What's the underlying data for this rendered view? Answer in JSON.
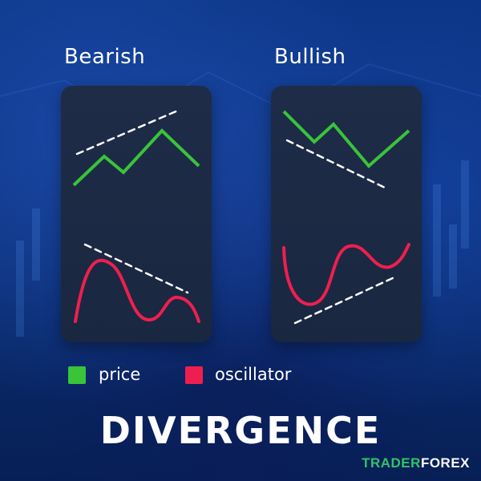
{
  "headings": {
    "bearish": "Bearish",
    "bullish": "Bullish"
  },
  "legend": {
    "price_label": "price",
    "oscillator_label": "oscillator"
  },
  "title": "DIVERGENCE",
  "brand": {
    "part1": "TRADER",
    "part2": "FOREX"
  },
  "colors": {
    "price": "#39c43a",
    "oscillator": "#ee1f4f",
    "trendline": "#ffffff",
    "panel": "#1e2c48",
    "background": "#0b3584"
  },
  "diagram": {
    "bearish": {
      "price_trend": "higher highs",
      "oscillator_trend": "lower highs"
    },
    "bullish": {
      "price_trend": "lower lows",
      "oscillator_trend": "higher lows"
    }
  }
}
